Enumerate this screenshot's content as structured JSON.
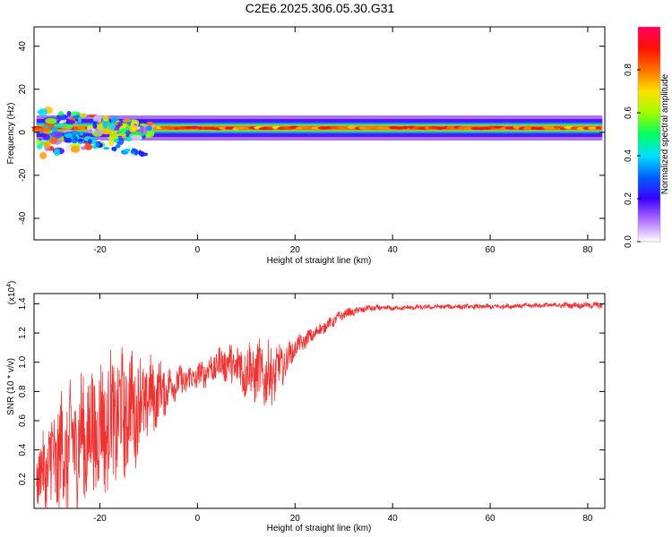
{
  "title": "C2E6.2025.306.05.30.G31",
  "chart_data": [
    {
      "type": "heatmap",
      "xlabel": "Height of straight line (km)",
      "ylabel": "Frequency (Hz)",
      "xlim": [
        -33.5,
        83.5
      ],
      "ylim": [
        -50,
        49
      ],
      "xticks": [
        -20,
        0,
        20,
        40,
        60,
        80
      ],
      "xtick_labels": [
        "-20",
        "0",
        "20",
        "40",
        "60",
        "80"
      ],
      "yticks": [
        -40,
        -20,
        0,
        20,
        40
      ],
      "ytick_labels": [
        "-40",
        "-20",
        "0",
        "20",
        "40"
      ],
      "band": {
        "x_start": -33,
        "x_end": 83,
        "center_hz": 2,
        "note": "narrow energy band near 2 Hz across all heights, broad scatter below -10 km"
      },
      "colorbar": {
        "label": "Normalized spectral amplitude",
        "range": [
          0,
          1
        ],
        "ticks": [
          0.0,
          0.2,
          0.4,
          0.6,
          0.8
        ],
        "tick_labels": [
          "0.0",
          "0.2",
          "0.4",
          "0.6",
          "0.8"
        ],
        "colormap": [
          "#ffffff",
          "#b070ff",
          "#3a00ff",
          "#0060ff",
          "#00e0ff",
          "#00ff60",
          "#a0ff00",
          "#ffe000",
          "#ff7000",
          "#ff1000",
          "#ff0060"
        ]
      }
    },
    {
      "type": "line",
      "xlabel": "Height of straight line (km)",
      "ylabel": "SNR (10 * v/v)",
      "multiplier": "(x10",
      "multiplier_exp": "4",
      "multiplier_close": ")",
      "xlim": [
        -33.5,
        83.5
      ],
      "ylim": [
        0.0,
        1.47
      ],
      "xticks": [
        -20,
        0,
        20,
        40,
        60,
        80
      ],
      "xtick_labels": [
        "-20",
        "0",
        "20",
        "40",
        "60",
        "80"
      ],
      "yticks": [
        0.2,
        0.4,
        0.6,
        0.8,
        1.0,
        1.2,
        1.4
      ],
      "ytick_labels": [
        "0.2",
        "0.4",
        "0.6",
        "0.8",
        "1.0",
        "1.2",
        "1.4"
      ],
      "series": [
        {
          "name": "SNR",
          "color": "#ee3333"
        }
      ],
      "envelope": {
        "x": [
          -33,
          -30,
          -25,
          -20,
          -15,
          -10,
          -5,
          0,
          5,
          10,
          15,
          18,
          20,
          25,
          30,
          35,
          40,
          50,
          60,
          70,
          83
        ],
        "center": [
          0.2,
          0.3,
          0.45,
          0.55,
          0.65,
          0.75,
          0.85,
          0.9,
          1.0,
          0.95,
          0.9,
          1.0,
          1.1,
          1.22,
          1.33,
          1.37,
          1.37,
          1.38,
          1.38,
          1.39,
          1.39
        ],
        "amplitude": [
          0.15,
          0.35,
          0.4,
          0.4,
          0.4,
          0.25,
          0.1,
          0.08,
          0.1,
          0.18,
          0.2,
          0.1,
          0.06,
          0.04,
          0.03,
          0.02,
          0.015,
          0.015,
          0.015,
          0.015,
          0.02
        ]
      }
    }
  ]
}
